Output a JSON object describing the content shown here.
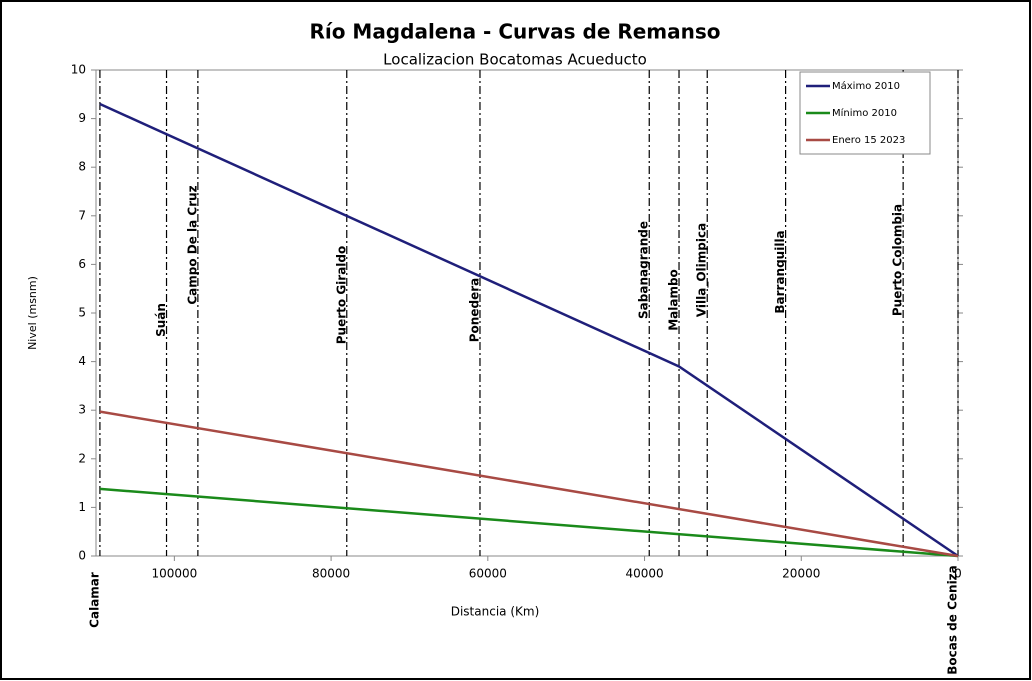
{
  "chart_data": {
    "type": "line",
    "title": "Río Magdalena - Curvas de Remanso",
    "subtitle": "Localizacion Bocatomas Acueducto",
    "x_label": "Distancia (Km)",
    "y_label": "Nivel (msnm)",
    "xlim": [
      110000,
      0
    ],
    "xticks": [
      100000,
      80000,
      60000,
      40000,
      20000,
      0
    ],
    "ylim": [
      0,
      10
    ],
    "yticks": [
      0,
      1,
      2,
      3,
      4,
      5,
      6,
      7,
      8,
      9,
      10
    ],
    "legend": "top-right",
    "series": [
      {
        "name": "Máximo 2010",
        "color": "#1f1f7a",
        "x": [
          109500,
          35600,
          0
        ],
        "values": [
          9.3,
          3.9,
          0
        ]
      },
      {
        "name": "Mínimo 2010",
        "color": "#1a8a1a",
        "x": [
          109500,
          0
        ],
        "values": [
          1.38,
          0
        ]
      },
      {
        "name": "Enero 15 2023",
        "color": "#a84a44",
        "x": [
          109500,
          0
        ],
        "values": [
          2.97,
          0
        ]
      }
    ],
    "stations": [
      {
        "name": "Calamar",
        "x": 109500
      },
      {
        "name": "Suán",
        "x": 101000
      },
      {
        "name": "Campo De la Cruz",
        "x": 97000
      },
      {
        "name": "Puerto Giraldo",
        "x": 78000
      },
      {
        "name": "Ponedera",
        "x": 61000
      },
      {
        "name": "Sabanagrande",
        "x": 39400
      },
      {
        "name": "Malambo",
        "x": 35600
      },
      {
        "name": "Villa_Olimpica",
        "x": 32000
      },
      {
        "name": "Barranquilla",
        "x": 22000
      },
      {
        "name": "Puerto Colombia",
        "x": 7000
      },
      {
        "name": "Bocas de Ceniza",
        "x": 0
      }
    ]
  }
}
